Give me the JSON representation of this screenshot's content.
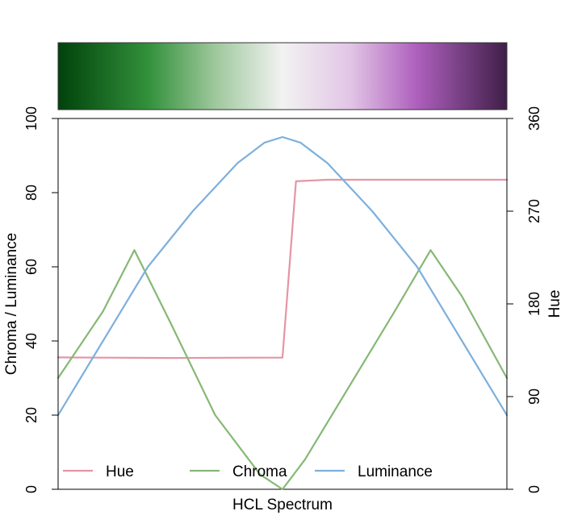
{
  "chart_data": {
    "type": "line",
    "title": "",
    "xlabel": "HCL Spectrum",
    "ylabel_left": "Chroma / Luminance",
    "ylabel_right": "Hue",
    "ylim_left": [
      0,
      100
    ],
    "ylim_right": [
      0,
      360
    ],
    "xlim": [
      0,
      1
    ],
    "yticks_left": [
      "0",
      "20",
      "40",
      "60",
      "80",
      "100"
    ],
    "yticks_right": [
      "0",
      "90",
      "180",
      "270",
      "360"
    ],
    "colorbar": {
      "stops": [
        {
          "pos": 0.0,
          "color": "#00420b"
        },
        {
          "pos": 0.2,
          "color": "#32903a"
        },
        {
          "pos": 0.35,
          "color": "#9ec89c"
        },
        {
          "pos": 0.5,
          "color": "#f2f2f2"
        },
        {
          "pos": 0.65,
          "color": "#e2c6e6"
        },
        {
          "pos": 0.8,
          "color": "#ae5fbd"
        },
        {
          "pos": 1.0,
          "color": "#3f1f48"
        }
      ]
    },
    "legend": {
      "placement": "bottom",
      "entries": [
        "Hue",
        "Chroma",
        "Luminance"
      ]
    },
    "series": [
      {
        "name": "Hue",
        "axis": "right",
        "color": "#e495a5",
        "points": [
          [
            0,
            128
          ],
          [
            0.25,
            127.5
          ],
          [
            0.45,
            127.8
          ],
          [
            0.5,
            127.8
          ],
          [
            0.53,
            299
          ],
          [
            0.6,
            300.5
          ],
          [
            1.0,
            300.5
          ]
        ]
      },
      {
        "name": "Chroma",
        "axis": "left",
        "color": "#86b875",
        "points": [
          [
            0,
            30
          ],
          [
            0.1,
            48
          ],
          [
            0.17,
            64.5
          ],
          [
            0.25,
            45
          ],
          [
            0.35,
            20
          ],
          [
            0.45,
            4
          ],
          [
            0.5,
            0
          ],
          [
            0.55,
            8
          ],
          [
            0.65,
            28
          ],
          [
            0.75,
            48
          ],
          [
            0.83,
            64.5
          ],
          [
            0.9,
            52
          ],
          [
            1.0,
            30
          ]
        ]
      },
      {
        "name": "Luminance",
        "axis": "left",
        "color": "#7db0dd",
        "points": [
          [
            0,
            20
          ],
          [
            0.1,
            40
          ],
          [
            0.2,
            60
          ],
          [
            0.3,
            75
          ],
          [
            0.4,
            88
          ],
          [
            0.46,
            93.5
          ],
          [
            0.5,
            95
          ],
          [
            0.54,
            93.5
          ],
          [
            0.6,
            88
          ],
          [
            0.7,
            75
          ],
          [
            0.8,
            60
          ],
          [
            0.9,
            40
          ],
          [
            1.0,
            20
          ]
        ]
      }
    ]
  }
}
